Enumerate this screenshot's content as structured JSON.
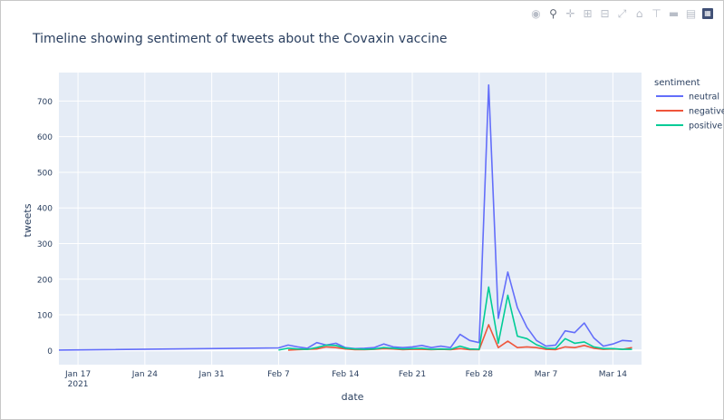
{
  "title": "Timeline showing sentiment of tweets about the Covaxin vaccine",
  "modebar": {
    "icons": [
      "camera-icon",
      "zoom-icon",
      "pan-icon",
      "zoom-in-icon",
      "zoom-out-icon",
      "autoscale-icon",
      "reset-axes-icon",
      "spike-lines-icon",
      "hover-closest-icon",
      "hover-compare-icon",
      "plotly-logo-icon"
    ]
  },
  "colors": {
    "neutral": "#636efa",
    "negative": "#ef553b",
    "positive": "#00cc96",
    "plot_bg": "#e5ecf6",
    "grid": "#ffffff"
  },
  "chart_data": {
    "type": "line",
    "title": "Timeline showing sentiment of tweets about the Covaxin vaccine",
    "xlabel": "date",
    "ylabel": "tweets",
    "legend_title": "sentiment",
    "legend_position": "top-right",
    "grid": true,
    "xlim": [
      "2021-01-15",
      "2021-03-17"
    ],
    "ylim": [
      -40,
      780
    ],
    "x_ticks": [
      {
        "date": "2021-01-17",
        "label": "Jan 17",
        "sublabel": "2021"
      },
      {
        "date": "2021-01-24",
        "label": "Jan 24"
      },
      {
        "date": "2021-01-31",
        "label": "Jan 31"
      },
      {
        "date": "2021-02-07",
        "label": "Feb 7"
      },
      {
        "date": "2021-02-14",
        "label": "Feb 14"
      },
      {
        "date": "2021-02-21",
        "label": "Feb 21"
      },
      {
        "date": "2021-02-28",
        "label": "Feb 28"
      },
      {
        "date": "2021-03-07",
        "label": "Mar 7"
      },
      {
        "date": "2021-03-14",
        "label": "Mar 14"
      }
    ],
    "y_ticks": [
      0,
      100,
      200,
      300,
      400,
      500,
      600,
      700
    ],
    "series": [
      {
        "name": "neutral",
        "color": "#636efa",
        "points": [
          [
            "2021-01-15",
            1
          ],
          [
            "2021-02-07",
            7
          ],
          [
            "2021-02-08",
            15
          ],
          [
            "2021-02-09",
            10
          ],
          [
            "2021-02-10",
            6
          ],
          [
            "2021-02-11",
            22
          ],
          [
            "2021-02-12",
            15
          ],
          [
            "2021-02-13",
            20
          ],
          [
            "2021-02-14",
            8
          ],
          [
            "2021-02-15",
            5
          ],
          [
            "2021-02-16",
            6
          ],
          [
            "2021-02-17",
            8
          ],
          [
            "2021-02-18",
            18
          ],
          [
            "2021-02-19",
            10
          ],
          [
            "2021-02-20",
            8
          ],
          [
            "2021-02-21",
            10
          ],
          [
            "2021-02-22",
            14
          ],
          [
            "2021-02-23",
            8
          ],
          [
            "2021-02-24",
            12
          ],
          [
            "2021-02-25",
            8
          ],
          [
            "2021-02-26",
            45
          ],
          [
            "2021-02-27",
            28
          ],
          [
            "2021-02-28",
            22
          ],
          [
            "2021-03-01",
            745
          ],
          [
            "2021-03-02",
            90
          ],
          [
            "2021-03-03",
            220
          ],
          [
            "2021-03-04",
            120
          ],
          [
            "2021-03-05",
            65
          ],
          [
            "2021-03-06",
            28
          ],
          [
            "2021-03-07",
            12
          ],
          [
            "2021-03-08",
            15
          ],
          [
            "2021-03-09",
            55
          ],
          [
            "2021-03-10",
            50
          ],
          [
            "2021-03-11",
            77
          ],
          [
            "2021-03-12",
            35
          ],
          [
            "2021-03-13",
            12
          ],
          [
            "2021-03-14",
            18
          ],
          [
            "2021-03-15",
            28
          ],
          [
            "2021-03-16",
            26
          ]
        ]
      },
      {
        "name": "negative",
        "color": "#ef553b",
        "points": [
          [
            "2021-02-08",
            1
          ],
          [
            "2021-02-09",
            2
          ],
          [
            "2021-02-10",
            3
          ],
          [
            "2021-02-11",
            4
          ],
          [
            "2021-02-12",
            10
          ],
          [
            "2021-02-13",
            8
          ],
          [
            "2021-02-14",
            4
          ],
          [
            "2021-02-15",
            2
          ],
          [
            "2021-02-16",
            2
          ],
          [
            "2021-02-17",
            3
          ],
          [
            "2021-02-18",
            5
          ],
          [
            "2021-02-19",
            4
          ],
          [
            "2021-02-20",
            2
          ],
          [
            "2021-02-21",
            3
          ],
          [
            "2021-02-22",
            3
          ],
          [
            "2021-02-23",
            2
          ],
          [
            "2021-02-24",
            3
          ],
          [
            "2021-02-25",
            2
          ],
          [
            "2021-02-26",
            5
          ],
          [
            "2021-02-27",
            2
          ],
          [
            "2021-02-28",
            2
          ],
          [
            "2021-03-01",
            72
          ],
          [
            "2021-03-02",
            8
          ],
          [
            "2021-03-03",
            26
          ],
          [
            "2021-03-04",
            8
          ],
          [
            "2021-03-05",
            10
          ],
          [
            "2021-03-06",
            8
          ],
          [
            "2021-03-07",
            3
          ],
          [
            "2021-03-08",
            2
          ],
          [
            "2021-03-09",
            10
          ],
          [
            "2021-03-10",
            8
          ],
          [
            "2021-03-11",
            14
          ],
          [
            "2021-03-12",
            6
          ],
          [
            "2021-03-13",
            3
          ],
          [
            "2021-03-14",
            4
          ],
          [
            "2021-03-15",
            3
          ],
          [
            "2021-03-16",
            8
          ]
        ]
      },
      {
        "name": "positive",
        "color": "#00cc96",
        "points": [
          [
            "2021-02-07",
            1
          ],
          [
            "2021-02-08",
            6
          ],
          [
            "2021-02-09",
            4
          ],
          [
            "2021-02-10",
            3
          ],
          [
            "2021-02-11",
            8
          ],
          [
            "2021-02-12",
            15
          ],
          [
            "2021-02-13",
            14
          ],
          [
            "2021-02-14",
            6
          ],
          [
            "2021-02-15",
            4
          ],
          [
            "2021-02-16",
            3
          ],
          [
            "2021-02-17",
            4
          ],
          [
            "2021-02-18",
            8
          ],
          [
            "2021-02-19",
            6
          ],
          [
            "2021-02-20",
            4
          ],
          [
            "2021-02-21",
            5
          ],
          [
            "2021-02-22",
            6
          ],
          [
            "2021-02-23",
            3
          ],
          [
            "2021-02-24",
            4
          ],
          [
            "2021-02-25",
            3
          ],
          [
            "2021-02-26",
            12
          ],
          [
            "2021-02-27",
            4
          ],
          [
            "2021-02-28",
            3
          ],
          [
            "2021-03-01",
            178
          ],
          [
            "2021-03-02",
            20
          ],
          [
            "2021-03-03",
            155
          ],
          [
            "2021-03-04",
            40
          ],
          [
            "2021-03-05",
            33
          ],
          [
            "2021-03-06",
            16
          ],
          [
            "2021-03-07",
            6
          ],
          [
            "2021-03-08",
            5
          ],
          [
            "2021-03-09",
            33
          ],
          [
            "2021-03-10",
            20
          ],
          [
            "2021-03-11",
            24
          ],
          [
            "2021-03-12",
            10
          ],
          [
            "2021-03-13",
            5
          ],
          [
            "2021-03-14",
            5
          ],
          [
            "2021-03-15",
            3
          ],
          [
            "2021-03-16",
            3
          ]
        ]
      }
    ]
  }
}
